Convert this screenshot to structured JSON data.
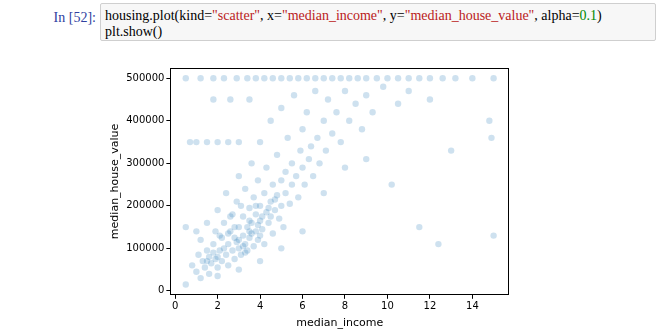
{
  "cell": {
    "prompt": "In [52]:",
    "code": [
      "housing.plot(kind=\"scatter\", x=\"median_income\", y=\"median_house_value\", alpha=0.1)",
      "plt.show()"
    ]
  },
  "chart_data": {
    "type": "scatter",
    "x_label": "median_income",
    "y_label": "median_house_value",
    "color": "#1f77b4",
    "marker": "circle",
    "grid": false,
    "xlim": [
      -0.225,
      15.725
    ],
    "ylim": [
      -9250,
      524250
    ],
    "xticks": [
      0,
      2,
      4,
      6,
      8,
      10,
      12,
      14
    ],
    "yticks": [
      0,
      100000,
      200000,
      300000,
      400000,
      500000
    ],
    "x": [
      0.5,
      1.2,
      1.8,
      2.3,
      2.9,
      3.4,
      3.8,
      4.2,
      4.6,
      5.0,
      5.4,
      5.8,
      6.2,
      6.6,
      7.0,
      7.4,
      7.8,
      8.2,
      8.6,
      9.0,
      9.5,
      10.0,
      10.5,
      11.0,
      11.5,
      12.0,
      12.6,
      13.2,
      14.0,
      15.0,
      1.0,
      1.5,
      2.0,
      2.5,
      3.0,
      1.8,
      2.6,
      3.5,
      0.8,
      1.0,
      1.1,
      1.2,
      1.3,
      1.4,
      1.5,
      1.5,
      1.6,
      1.7,
      1.8,
      1.9,
      1.9,
      2.0,
      2.0,
      2.1,
      2.2,
      2.2,
      2.3,
      2.4,
      2.4,
      2.5,
      2.5,
      2.6,
      2.7,
      2.7,
      2.8,
      2.8,
      2.9,
      3.0,
      3.0,
      3.0,
      3.1,
      3.2,
      3.2,
      3.3,
      3.3,
      3.4,
      3.4,
      3.5,
      3.5,
      3.6,
      3.6,
      3.7,
      3.7,
      3.8,
      3.8,
      3.9,
      3.9,
      4.0,
      4.0,
      4.0,
      4.1,
      4.2,
      4.2,
      4.3,
      4.3,
      4.4,
      4.5,
      4.5,
      4.6,
      4.6,
      4.7,
      4.8,
      4.8,
      4.9,
      5.0,
      5.0,
      5.0,
      5.1,
      5.2,
      5.2,
      5.3,
      5.4,
      5.5,
      5.5,
      5.6,
      5.7,
      5.8,
      5.9,
      6.0,
      6.0,
      6.1,
      6.2,
      6.3,
      6.4,
      6.5,
      6.6,
      6.7,
      6.8,
      7.0,
      7.1,
      7.2,
      7.4,
      7.6,
      7.8,
      8.0,
      8.2,
      8.5,
      8.8,
      9.0,
      9.3,
      9.8,
      10.2,
      10.5,
      11.0,
      11.5,
      12.4,
      13.0,
      14.8,
      14.9,
      15.0,
      0.5,
      0.5,
      0.7,
      1.0,
      1.2,
      1.6,
      2.0,
      3.0,
      4.0,
      5.0,
      6.0,
      7.0,
      8.0,
      9.0,
      12.0,
      2.6,
      3.1,
      3.5,
      4.1,
      2.9,
      3.6,
      4.4,
      2.3,
      3.9,
      4.7,
      2.1,
      1.8,
      3.3,
      2.5,
      3.0,
      3.5,
      4.0,
      2.0,
      1.5,
      4.5,
      3.2,
      2.8,
      3.8
    ],
    "values": [
      500000,
      500000,
      500000,
      500000,
      500000,
      500000,
      500000,
      500000,
      500000,
      500000,
      500000,
      500000,
      500000,
      500000,
      500000,
      500000,
      500000,
      500000,
      500000,
      500000,
      500000,
      500000,
      500000,
      500000,
      500000,
      500000,
      500000,
      500000,
      500000,
      500000,
      350000,
      350000,
      350000,
      350000,
      350000,
      450000,
      450000,
      450000,
      60000,
      45000,
      85000,
      120000,
      70000,
      55000,
      95000,
      160000,
      80000,
      65000,
      110000,
      140000,
      75000,
      55000,
      190000,
      95000,
      125000,
      70000,
      160000,
      85000,
      230000,
      110000,
      60000,
      140000,
      95000,
      180000,
      75000,
      125000,
      210000,
      100000,
      150000,
      270000,
      85000,
      130000,
      175000,
      110000,
      240000,
      150000,
      95000,
      195000,
      125000,
      300000,
      160000,
      105000,
      220000,
      140000,
      180000,
      260000,
      120000,
      165000,
      200000,
      350000,
      145000,
      230000,
      110000,
      185000,
      290000,
      160000,
      210000,
      400000,
      135000,
      250000,
      190000,
      320000,
      225000,
      170000,
      260000,
      200000,
      430000,
      150000,
      280000,
      230000,
      360000,
      205000,
      300000,
      250000,
      460000,
      270000,
      220000,
      330000,
      290000,
      380000,
      250000,
      420000,
      310000,
      340000,
      270000,
      470000,
      360000,
      300000,
      400000,
      330000,
      450000,
      370000,
      420000,
      350000,
      470000,
      400000,
      440000,
      380000,
      460000,
      420000,
      480000,
      250000,
      440000,
      470000,
      150000,
      110000,
      330000,
      400000,
      360000,
      130000,
      15000,
      150000,
      350000,
      140000,
      30000,
      40000,
      35000,
      50000,
      70000,
      100000,
      140000,
      230000,
      290000,
      310000,
      450000,
      175000,
      200000,
      140000,
      175000,
      115000,
      135000,
      195000,
      100000,
      155000,
      215000,
      130000,
      90000,
      90000,
      135000,
      120000,
      165000,
      130000,
      80000,
      70000,
      175000,
      105000,
      150000,
      200000
    ]
  }
}
